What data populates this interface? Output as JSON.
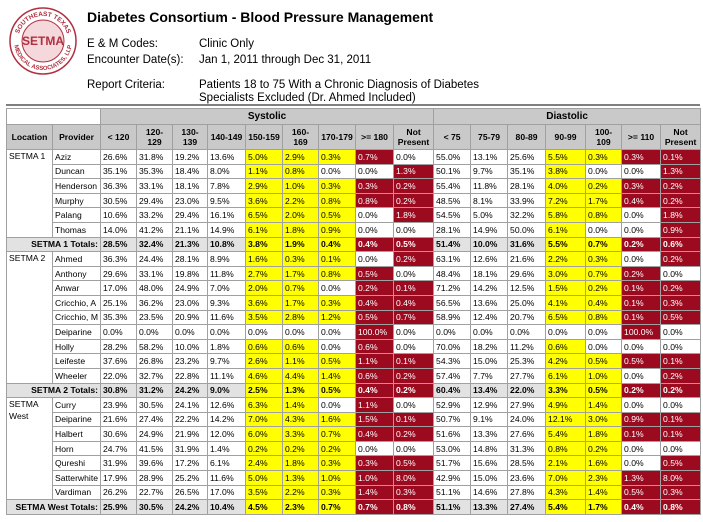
{
  "logo": {
    "top": "SOUTHEAST TEXAS",
    "center": "SETMA",
    "bottom": "MEDICAL ASSOCIATES, LLP"
  },
  "header": {
    "title": "Diabetes Consortium - Blood Pressure Management",
    "fields": [
      {
        "label": "E & M Codes:",
        "value": "Clinic Only"
      },
      {
        "label": "Encounter Date(s):",
        "value": "Jan 1, 2011 through Dec 31, 2011"
      }
    ],
    "criteria_label": "Report Criteria:",
    "criteria_lines": [
      "Patients 18 to 75 With a Chronic Diagnosis of Diabetes",
      "Specialists Excluded (Dr. Ahmed Included)"
    ]
  },
  "table": {
    "group_headers": [
      "Systolic",
      "Diastolic"
    ],
    "columns": [
      "Location",
      "Provider",
      "< 120",
      "120-129",
      "130-139",
      "140-149",
      "150-159",
      "160-169",
      "170-179",
      ">= 180",
      "Not Present",
      "< 75",
      "75-79",
      "80-89",
      "90-99",
      "100-109",
      ">= 110",
      "Not Present"
    ],
    "groups": [
      {
        "location": "SETMA 1",
        "rows": [
          {
            "provider": "Aziz",
            "cells": [
              "26.6%",
              "31.8%",
              "19.2%",
              "13.6%",
              "5.0%",
              "2.9%",
              "0.3%",
              "0.7%",
              "0.0%",
              "55.0%",
              "13.1%",
              "25.6%",
              "5.5%",
              "0.3%",
              "0.3%",
              "0.1%"
            ]
          },
          {
            "provider": "Duncan",
            "cells": [
              "35.1%",
              "35.3%",
              "18.4%",
              "8.0%",
              "1.1%",
              "0.8%",
              "0.0%",
              "0.0%",
              "1.3%",
              "50.1%",
              "9.7%",
              "35.1%",
              "3.8%",
              "0.0%",
              "0.0%",
              "1.3%"
            ]
          },
          {
            "provider": "Henderson",
            "cells": [
              "36.3%",
              "33.1%",
              "18.1%",
              "7.8%",
              "2.9%",
              "1.0%",
              "0.3%",
              "0.3%",
              "0.2%",
              "55.4%",
              "11.8%",
              "28.1%",
              "4.0%",
              "0.2%",
              "0.3%",
              "0.2%"
            ]
          },
          {
            "provider": "Murphy",
            "cells": [
              "30.5%",
              "29.4%",
              "23.0%",
              "9.5%",
              "3.6%",
              "2.2%",
              "0.8%",
              "0.8%",
              "0.2%",
              "48.5%",
              "8.1%",
              "33.9%",
              "7.2%",
              "1.7%",
              "0.4%",
              "0.2%"
            ]
          },
          {
            "provider": "Palang",
            "cells": [
              "10.6%",
              "33.2%",
              "29.4%",
              "16.1%",
              "6.5%",
              "2.0%",
              "0.5%",
              "0.0%",
              "1.8%",
              "54.5%",
              "5.0%",
              "32.2%",
              "5.8%",
              "0.8%",
              "0.0%",
              "1.8%"
            ]
          },
          {
            "provider": "Thomas",
            "cells": [
              "14.0%",
              "41.2%",
              "21.1%",
              "14.9%",
              "6.1%",
              "1.8%",
              "0.9%",
              "0.0%",
              "0.0%",
              "28.1%",
              "14.9%",
              "50.0%",
              "6.1%",
              "0.0%",
              "0.0%",
              "0.9%"
            ]
          }
        ],
        "total": {
          "label": "SETMA 1 Totals:",
          "cells": [
            "28.5%",
            "32.4%",
            "21.3%",
            "10.8%",
            "3.8%",
            "1.9%",
            "0.4%",
            "0.4%",
            "0.5%",
            "51.4%",
            "10.0%",
            "31.6%",
            "5.5%",
            "0.7%",
            "0.2%",
            "0.6%"
          ]
        }
      },
      {
        "location": "SETMA 2",
        "rows": [
          {
            "provider": "Ahmed",
            "cells": [
              "36.3%",
              "24.4%",
              "28.1%",
              "8.9%",
              "1.6%",
              "0.3%",
              "0.1%",
              "0.0%",
              "0.2%",
              "63.1%",
              "12.6%",
              "21.6%",
              "2.2%",
              "0.3%",
              "0.0%",
              "0.2%"
            ]
          },
          {
            "provider": "Anthony",
            "cells": [
              "29.6%",
              "33.1%",
              "19.8%",
              "11.8%",
              "2.7%",
              "1.7%",
              "0.8%",
              "0.5%",
              "0.0%",
              "48.4%",
              "18.1%",
              "29.6%",
              "3.0%",
              "0.7%",
              "0.2%",
              "0.0%"
            ]
          },
          {
            "provider": "Anwar",
            "cells": [
              "17.0%",
              "48.0%",
              "24.9%",
              "7.0%",
              "2.0%",
              "0.7%",
              "0.0%",
              "0.2%",
              "0.1%",
              "71.2%",
              "14.2%",
              "12.5%",
              "1.5%",
              "0.2%",
              "0.1%",
              "0.2%"
            ]
          },
          {
            "provider": "Cricchio, A",
            "cells": [
              "25.1%",
              "36.2%",
              "23.0%",
              "9.3%",
              "3.6%",
              "1.7%",
              "0.3%",
              "0.4%",
              "0.4%",
              "56.5%",
              "13.6%",
              "25.0%",
              "4.1%",
              "0.4%",
              "0.1%",
              "0.3%"
            ]
          },
          {
            "provider": "Cricchio, M",
            "cells": [
              "35.3%",
              "23.5%",
              "20.9%",
              "11.6%",
              "3.5%",
              "2.8%",
              "1.2%",
              "0.5%",
              "0.7%",
              "58.9%",
              "12.4%",
              "20.7%",
              "6.5%",
              "0.8%",
              "0.1%",
              "0.5%"
            ]
          },
          {
            "provider": "Deiparine",
            "cells": [
              "0.0%",
              "0.0%",
              "0.0%",
              "0.0%",
              "0.0%",
              "0.0%",
              "0.0%",
              "100.0%",
              "0.0%",
              "0.0%",
              "0.0%",
              "0.0%",
              "0.0%",
              "0.0%",
              "100.0%",
              "0.0%"
            ]
          },
          {
            "provider": "Holly",
            "cells": [
              "28.2%",
              "58.2%",
              "10.0%",
              "1.8%",
              "0.6%",
              "0.6%",
              "0.0%",
              "0.6%",
              "0.0%",
              "70.0%",
              "18.2%",
              "11.2%",
              "0.6%",
              "0.0%",
              "0.0%",
              "0.0%"
            ]
          },
          {
            "provider": "Leifeste",
            "cells": [
              "37.6%",
              "26.8%",
              "23.2%",
              "9.7%",
              "2.6%",
              "1.1%",
              "0.5%",
              "1.1%",
              "0.1%",
              "54.3%",
              "15.0%",
              "25.3%",
              "4.2%",
              "0.5%",
              "0.5%",
              "0.1%"
            ]
          },
          {
            "provider": "Wheeler",
            "cells": [
              "22.0%",
              "32.7%",
              "22.8%",
              "11.1%",
              "4.6%",
              "4.4%",
              "1.4%",
              "0.6%",
              "0.2%",
              "57.4%",
              "7.7%",
              "27.7%",
              "6.1%",
              "1.0%",
              "0.0%",
              "0.2%"
            ]
          }
        ],
        "total": {
          "label": "SETMA 2 Totals:",
          "cells": [
            "30.8%",
            "31.2%",
            "24.2%",
            "9.0%",
            "2.5%",
            "1.3%",
            "0.5%",
            "0.4%",
            "0.2%",
            "60.4%",
            "13.4%",
            "22.0%",
            "3.3%",
            "0.5%",
            "0.2%",
            "0.2%"
          ]
        }
      },
      {
        "location": "SETMA West",
        "rows": [
          {
            "provider": "Curry",
            "cells": [
              "23.9%",
              "30.5%",
              "24.1%",
              "12.6%",
              "6.3%",
              "1.4%",
              "0.0%",
              "1.1%",
              "0.0%",
              "52.9%",
              "12.9%",
              "27.9%",
              "4.9%",
              "1.4%",
              "0.0%",
              "0.0%"
            ]
          },
          {
            "provider": "Deiparine",
            "cells": [
              "21.6%",
              "27.4%",
              "22.2%",
              "14.2%",
              "7.0%",
              "4.3%",
              "1.6%",
              "1.5%",
              "0.1%",
              "50.7%",
              "9.1%",
              "24.0%",
              "12.1%",
              "3.0%",
              "0.9%",
              "0.1%"
            ]
          },
          {
            "provider": "Halbert",
            "cells": [
              "30.6%",
              "24.9%",
              "21.9%",
              "12.0%",
              "6.0%",
              "3.3%",
              "0.7%",
              "0.4%",
              "0.2%",
              "51.6%",
              "13.3%",
              "27.6%",
              "5.4%",
              "1.8%",
              "0.1%",
              "0.1%"
            ]
          },
          {
            "provider": "Horn",
            "cells": [
              "24.7%",
              "41.5%",
              "31.9%",
              "1.4%",
              "0.2%",
              "0.2%",
              "0.2%",
              "0.0%",
              "0.0%",
              "53.0%",
              "14.8%",
              "31.3%",
              "0.8%",
              "0.2%",
              "0.0%",
              "0.0%"
            ]
          },
          {
            "provider": "Qureshi",
            "cells": [
              "31.9%",
              "39.6%",
              "17.2%",
              "6.1%",
              "2.4%",
              "1.8%",
              "0.3%",
              "0.3%",
              "0.5%",
              "51.7%",
              "15.6%",
              "28.5%",
              "2.1%",
              "1.6%",
              "0.0%",
              "0.5%"
            ]
          },
          {
            "provider": "Satterwhite",
            "cells": [
              "17.9%",
              "28.9%",
              "25.2%",
              "11.6%",
              "5.0%",
              "1.3%",
              "1.0%",
              "1.0%",
              "8.0%",
              "42.9%",
              "15.0%",
              "23.6%",
              "7.0%",
              "2.3%",
              "1.3%",
              "8.0%"
            ]
          },
          {
            "provider": "Vardiman",
            "cells": [
              "26.2%",
              "22.7%",
              "26.5%",
              "17.0%",
              "3.5%",
              "2.2%",
              "0.3%",
              "1.4%",
              "0.3%",
              "51.1%",
              "14.6%",
              "27.8%",
              "4.3%",
              "1.4%",
              "0.5%",
              "0.3%"
            ]
          }
        ],
        "total": {
          "label": "SETMA West Totals:",
          "cells": [
            "25.9%",
            "30.5%",
            "24.2%",
            "10.4%",
            "4.5%",
            "2.3%",
            "0.7%",
            "0.7%",
            "0.8%",
            "51.1%",
            "13.3%",
            "27.4%",
            "5.4%",
            "1.7%",
            "0.4%",
            "0.8%"
          ]
        }
      }
    ]
  }
}
